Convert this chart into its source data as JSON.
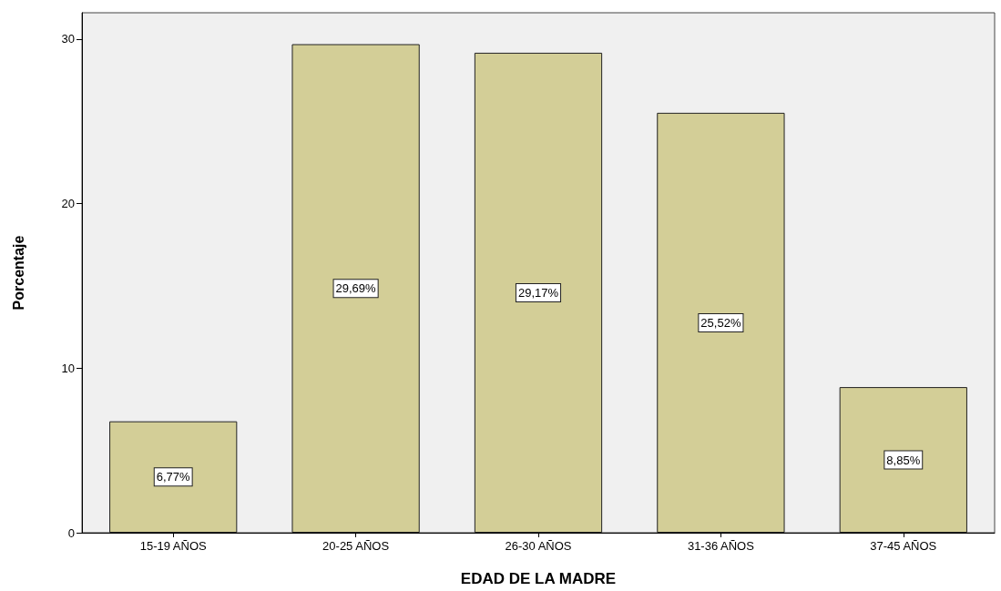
{
  "chart_data": {
    "type": "bar",
    "xlabel": "EDAD DE LA MADRE",
    "ylabel": "Porcentaje",
    "categories": [
      "15-19 AÑOS",
      "20-25 AÑOS",
      "26-30 AÑOS",
      "31-36 AÑOS",
      "37-45 AÑOS"
    ],
    "values": [
      6.77,
      29.69,
      29.17,
      25.52,
      8.85
    ],
    "value_labels": [
      "6,77%",
      "29,69%",
      "29,17%",
      "25,52%",
      "8,85%"
    ],
    "color": "#d3ce97",
    "ylim": [
      0,
      31.6
    ],
    "yticks": [
      0,
      10,
      20,
      30
    ],
    "grid": false
  }
}
